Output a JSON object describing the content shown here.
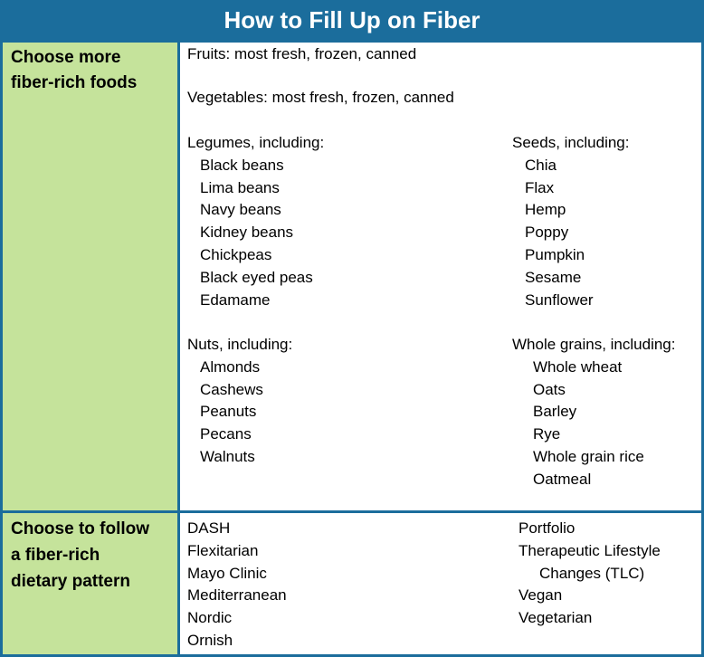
{
  "title": "How to Fill Up on Fiber",
  "rows": [
    {
      "label_line1": "Choose more",
      "label_line2": "fiber-rich foods",
      "fruits": "Fruits: most fresh, frozen, canned",
      "vegetables": "Vegetables: most fresh, frozen, canned",
      "legumes": {
        "heading": "Legumes, including:",
        "items": [
          "Black beans",
          "Lima beans",
          "Navy beans",
          "Kidney beans",
          "Chickpeas",
          "Black eyed peas",
          "Edamame"
        ]
      },
      "seeds": {
        "heading": "Seeds, including:",
        "items": [
          "Chia",
          "Flax",
          "Hemp",
          "Poppy",
          "Pumpkin",
          "Sesame",
          "Sunflower"
        ]
      },
      "nuts": {
        "heading": "Nuts, including:",
        "items": [
          "Almonds",
          "Cashews",
          "Peanuts",
          "Pecans",
          "Walnuts"
        ]
      },
      "whole_grains": {
        "heading": "Whole grains, including:",
        "items": [
          "Whole wheat",
          "Oats",
          "Barley",
          "Rye",
          "Whole grain rice",
          "Oatmeal"
        ]
      }
    },
    {
      "label_line1": "Choose to follow",
      "label_line2": "a fiber-rich",
      "label_line3": "dietary pattern",
      "patterns_left": [
        "DASH",
        "Flexitarian",
        "Mayo Clinic",
        "Mediterranean",
        "Nordic",
        "Ornish"
      ],
      "patterns_right": [
        "Portfolio",
        "Therapeutic Lifestyle",
        "Changes (TLC)",
        "Vegan",
        "Vegetarian"
      ]
    }
  ]
}
